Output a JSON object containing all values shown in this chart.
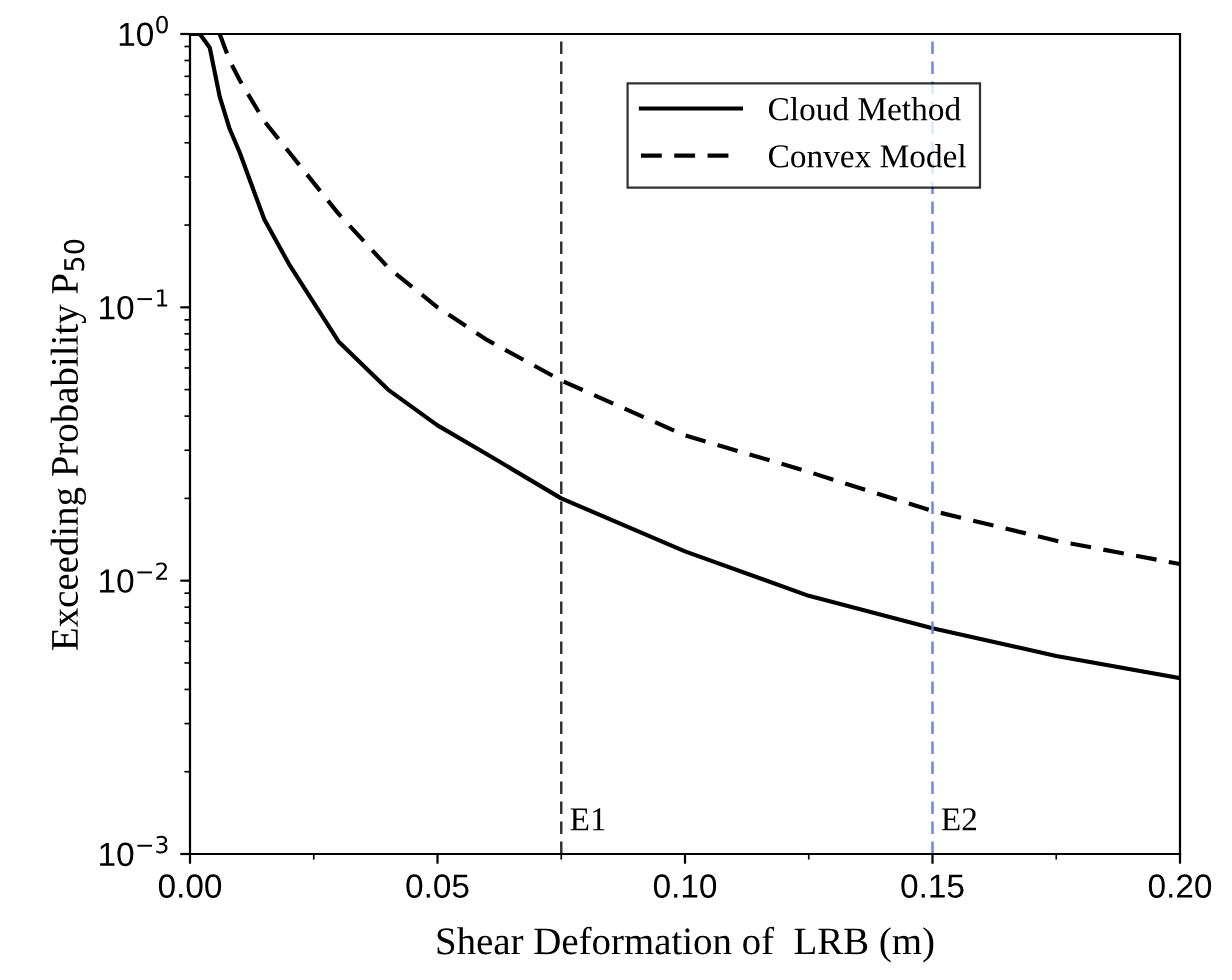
{
  "chart_data": {
    "type": "line",
    "xlabel": "Shear Deformation of  LRB (m)",
    "ylabel": "Exceeding Probability P$_{50}$",
    "series": [
      {
        "name": "Cloud Method",
        "color": "#000000",
        "line_style": "solid",
        "x": [
          0,
          0.002,
          0.004,
          0.006,
          0.008,
          0.01,
          0.015,
          0.02,
          0.03,
          0.04,
          0.05,
          0.06,
          0.075,
          0.1,
          0.125,
          0.15,
          0.175,
          0.2
        ],
        "values": [
          1,
          1,
          0.89,
          0.59,
          0.45,
          0.37,
          0.21,
          0.144,
          0.075,
          0.05,
          0.037,
          0.029,
          0.02,
          0.0128,
          0.0088,
          0.0067,
          0.0053,
          0.0044
        ]
      },
      {
        "name": "Convex Model",
        "color": "#000000",
        "line_style": "dashed",
        "x": [
          0.006,
          0.008,
          0.01,
          0.015,
          0.02,
          0.03,
          0.04,
          0.05,
          0.06,
          0.075,
          0.1,
          0.125,
          0.15,
          0.175,
          0.2
        ],
        "values": [
          1,
          0.8,
          0.68,
          0.48,
          0.37,
          0.22,
          0.14,
          0.1,
          0.076,
          0.054,
          0.034,
          0.025,
          0.018,
          0.014,
          0.0115
        ]
      }
    ],
    "log": "y",
    "xlim": [
      0,
      0.2
    ],
    "ylim": [
      0.001,
      1
    ],
    "xticks": [
      {
        "value": 0,
        "label": "0.00"
      },
      0.05,
      {
        "value": 0.1,
        "label": "0.10"
      },
      0.15,
      {
        "value": 0.2,
        "label": "0.20"
      }
    ],
    "yticks": [
      {
        "value": 0.001,
        "label": "10$^{−3}$"
      },
      {
        "value": 0.01,
        "label": "10$^{−2}$"
      },
      {
        "value": 0.1,
        "label": "10$^{−1}$"
      },
      {
        "value": 1,
        "label": "10$^{0}$"
      }
    ],
    "ref_lines": [
      {
        "axis": "x",
        "value": 0.075,
        "label": "E1",
        "color": "#333333",
        "line_style": "dashed"
      },
      {
        "axis": "x",
        "value": 0.15,
        "label": "E2",
        "color": "#6688ee",
        "line_style": "dashed"
      }
    ],
    "grid": false,
    "legend": "top"
  }
}
